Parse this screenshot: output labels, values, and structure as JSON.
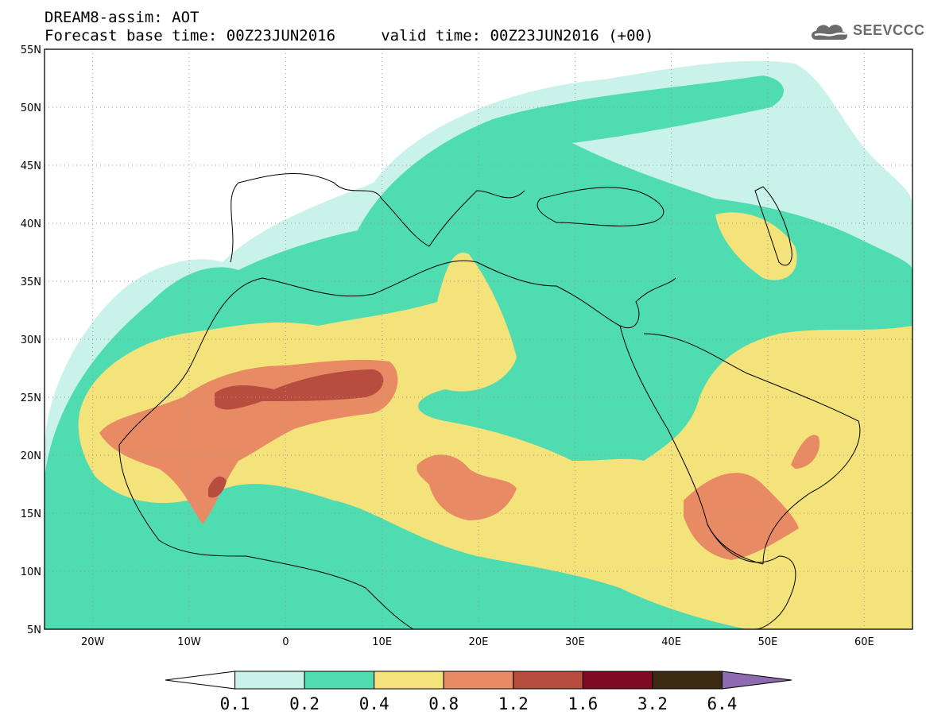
{
  "header": {
    "line1": "DREAM8-assim: AOT",
    "line2": "Forecast base time: 00Z23JUN2016     valid time: 00Z23JUN2016 (+00)"
  },
  "logo": {
    "text": "SEEVCCC",
    "icon": "cloud-icon"
  },
  "map": {
    "lon_range": [
      -25,
      65
    ],
    "lat_range": [
      5,
      55
    ],
    "lat_labels": [
      "55N",
      "50N",
      "45N",
      "40N",
      "35N",
      "30N",
      "25N",
      "20N",
      "15N",
      "10N",
      "5N"
    ],
    "lon_labels": [
      "20W",
      "10W",
      "0",
      "10E",
      "20E",
      "30E",
      "40E",
      "50E",
      "60E"
    ],
    "grid": "dotted",
    "projection": "cylindrical"
  },
  "legend": {
    "labels": [
      "0.1",
      "0.2",
      "0.4",
      "0.8",
      "1.2",
      "1.6",
      "3.2",
      "6.4"
    ],
    "colors": [
      "#ffffff",
      "#c9f2ea",
      "#4fdcb0",
      "#f4e27a",
      "#e88b64",
      "#b84c3e",
      "#7f0a24",
      "#3c2a12",
      "#8e6bb0"
    ]
  }
}
